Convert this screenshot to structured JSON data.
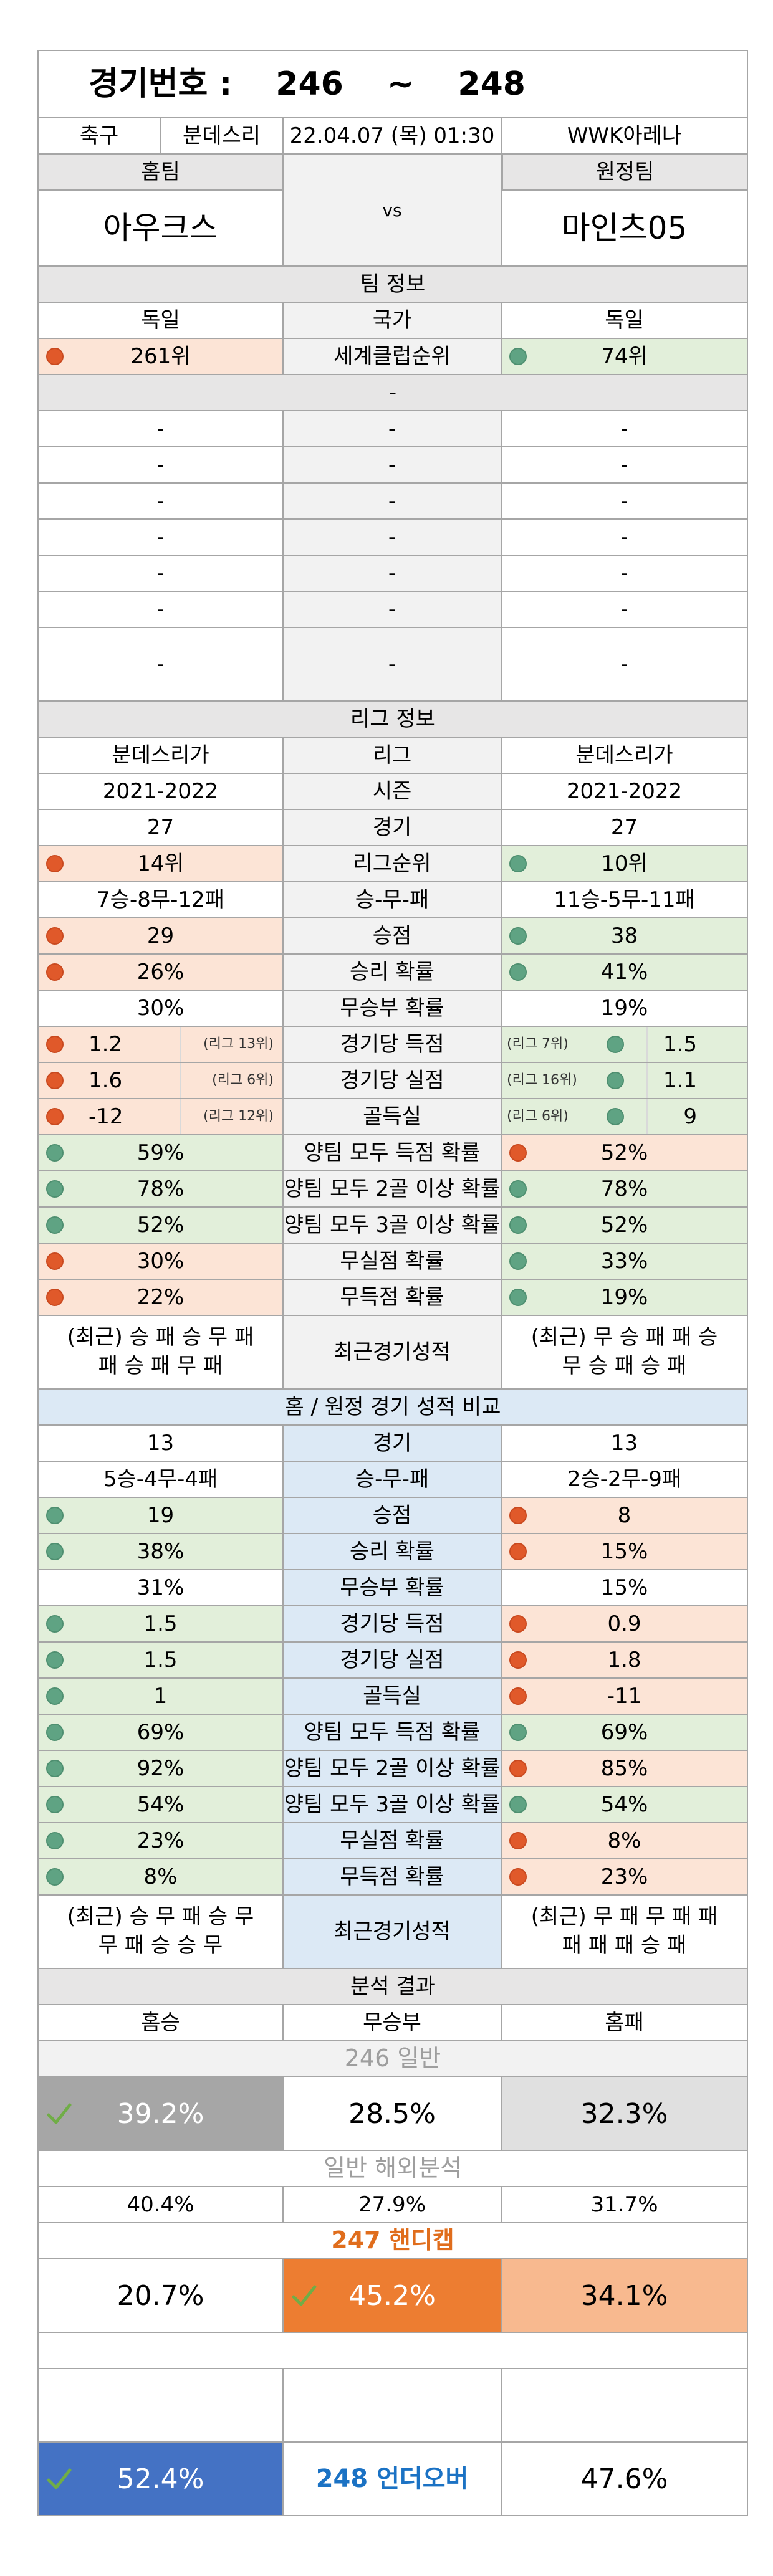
{
  "header": {
    "label": "경기번호 :",
    "from": "246",
    "tilde": "~",
    "to": "248"
  },
  "match": {
    "sport": "축구",
    "league": "분데스리",
    "datetime": "22.04.07 (목) 01:30",
    "venue": "WWK아레나"
  },
  "teams": {
    "home_label": "홈팀",
    "away_label": "원정팀",
    "home": "아우크스",
    "vs": "vs",
    "away": "마인츠05"
  },
  "team_info": {
    "title": "팀 정보",
    "country": {
      "home": "독일",
      "label": "국가",
      "away": "독일"
    },
    "world_rank": {
      "home": "261위",
      "label": "세계클럽순위",
      "away": "74위"
    },
    "blank_full": "-",
    "blank_rows": [
      [
        "-",
        "-",
        "-"
      ],
      [
        "-",
        "-",
        "-"
      ],
      [
        "-",
        "-",
        "-"
      ],
      [
        "-",
        "-",
        "-"
      ],
      [
        "-",
        "-",
        "-"
      ],
      [
        "-",
        "-",
        "-"
      ],
      [
        "-",
        "-",
        "-"
      ]
    ]
  },
  "league_info": {
    "title": "리그 정보",
    "league": {
      "home": "분데스리가",
      "label": "리그",
      "away": "분데스리가"
    },
    "season": {
      "home": "2021-2022",
      "label": "시즌",
      "away": "2021-2022"
    },
    "games": {
      "home": "27",
      "label": "경기",
      "away": "27"
    },
    "rank": {
      "home": "14위",
      "label": "리그순위",
      "away": "10위"
    },
    "wdl": {
      "home": "7승-8무-12패",
      "label": "승-무-패",
      "away": "11승-5무-11패"
    },
    "points": {
      "home": "29",
      "label": "승점",
      "away": "38"
    },
    "win_rate": {
      "home": "26%",
      "label": "승리 확률",
      "away": "41%"
    },
    "draw_rate": {
      "home": "30%",
      "label": "무승부 확률",
      "away": "19%"
    },
    "goals_for": {
      "home": "1.2",
      "home_rank": "(리그 13위)",
      "label": "경기당 득점",
      "away_rank": "(리그 7위)",
      "away": "1.5"
    },
    "goals_against": {
      "home": "1.6",
      "home_rank": "(리그 6위)",
      "label": "경기당 실점",
      "away_rank": "(리그 16위)",
      "away": "1.1"
    },
    "goal_diff": {
      "home": "-12",
      "home_rank": "(리그 12위)",
      "label": "골득실",
      "away_rank": "(리그 6위)",
      "away": "9"
    },
    "btts": {
      "home": "59%",
      "label": "양팀 모두 득점 확률",
      "away": "52%"
    },
    "btts2": {
      "home": "78%",
      "label": "양팀 모두 2골 이상 확률",
      "away": "78%"
    },
    "btts3": {
      "home": "52%",
      "label": "양팀 모두 3골 이상 확률",
      "away": "52%"
    },
    "clean_sheet": {
      "home": "30%",
      "label": "무실점 확률",
      "away": "33%"
    },
    "no_score": {
      "home": "22%",
      "label": "무득점 확률",
      "away": "19%"
    },
    "recent": {
      "home_1": "(최근) 승 패 승 무 패",
      "home_2": "패 승 패 무 패",
      "label": "최근경기성적",
      "away_1": "(최근) 무 승 패 패 승",
      "away_2": "무 승 패 승 패"
    }
  },
  "venue_compare": {
    "title": "홈 / 원정 경기 성적 비교",
    "games": {
      "home": "13",
      "label": "경기",
      "away": "13"
    },
    "wdl": {
      "home": "5승-4무-4패",
      "label": "승-무-패",
      "away": "2승-2무-9패"
    },
    "points": {
      "home": "19",
      "label": "승점",
      "away": "8"
    },
    "win_rate": {
      "home": "38%",
      "label": "승리 확률",
      "away": "15%"
    },
    "draw_rate": {
      "home": "31%",
      "label": "무승부 확률",
      "away": "15%"
    },
    "goals_for": {
      "home": "1.5",
      "label": "경기당 득점",
      "away": "0.9"
    },
    "goals_against": {
      "home": "1.5",
      "label": "경기당 실점",
      "away": "1.8"
    },
    "goal_diff": {
      "home": "1",
      "label": "골득실",
      "away": "-11"
    },
    "btts": {
      "home": "69%",
      "label": "양팀 모두 득점 확률",
      "away": "69%"
    },
    "btts2": {
      "home": "92%",
      "label": "양팀 모두 2골 이상 확률",
      "away": "85%"
    },
    "btts3": {
      "home": "54%",
      "label": "양팀 모두 3골 이상 확률",
      "away": "54%"
    },
    "clean_sheet": {
      "home": "23%",
      "label": "무실점 확률",
      "away": "8%"
    },
    "no_score": {
      "home": "8%",
      "label": "무득점 확률",
      "away": "23%"
    },
    "recent": {
      "home_1": "(최근) 승 무 패 승 무",
      "home_2": "무 패 승 승 무",
      "label": "최근경기성적",
      "away_1": "(최근) 무 패 무 패 패",
      "away_2": "패 패 패 승 패"
    }
  },
  "analysis": {
    "title": "분석 결과",
    "cols": {
      "home_win": "홈승",
      "draw": "무승부",
      "home_loss": "홈패"
    },
    "general_title": "246 일반",
    "general": {
      "home_win": "39.2%",
      "draw": "28.5%",
      "home_loss": "32.3%"
    },
    "overseas_title": "일반 해외분석",
    "overseas": {
      "home_win": "40.4%",
      "draw": "27.9%",
      "home_loss": "31.7%"
    },
    "handicap_title": "247 핸디캡",
    "handicap": {
      "home_win": "20.7%",
      "draw": "45.2%",
      "home_loss": "34.1%"
    },
    "underover": {
      "under": "52.4%",
      "label": "248 언더오버",
      "over": "47.6%"
    }
  },
  "colors": {
    "red_fill": "#fce4d6",
    "green_fill": "#e2efda",
    "red_dot": "#e0592a",
    "green_dot": "#5fa383",
    "grey_header": "#e7e6e6",
    "blue_header": "#dce9f5",
    "pick_grey": "#a6a6a6",
    "pick_orange": "#ed7d31",
    "light_orange": "#f8b98f",
    "pick_blue": "#4472c4",
    "check_green": "#70ad47"
  }
}
